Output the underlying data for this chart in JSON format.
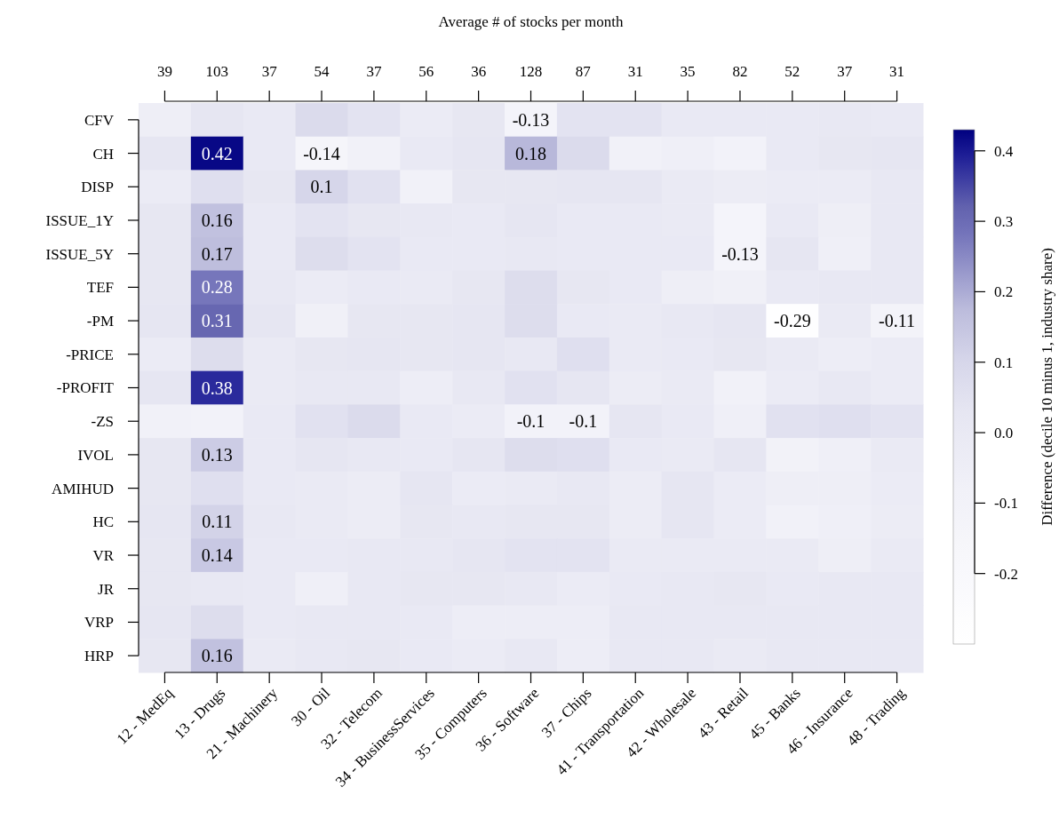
{
  "chart_data": {
    "type": "heatmap",
    "x2label": "Average # of stocks per month",
    "clabel": "Difference (decile 10 minus 1, industry share)",
    "categories": [
      "12 - MedEq",
      "13 - Drugs",
      "21 - Machinery",
      "30 - Oil",
      "32 - Telecom",
      "34 - BusinessServices",
      "35 - Computers",
      "36 - Software",
      "37 - Chips",
      "41 - Transportation",
      "42 - Wholesale",
      "43 - Retail",
      "45 - Banks",
      "46 - Insurance",
      "48 - Trading"
    ],
    "y_categories": [
      "CFV",
      "CH",
      "DISP",
      "ISSUE_1Y",
      "ISSUE_5Y",
      "TEF",
      "-PM",
      "-PRICE",
      "-PROFIT",
      "-ZS",
      "IVOL",
      "AMIHUD",
      "HC",
      "VR",
      "JR",
      "VRP",
      "HRP"
    ],
    "cells": [
      [
        -0.05,
        0.03,
        0.0,
        0.08,
        0.04,
        -0.02,
        0.02,
        -0.13,
        0.04,
        0.04,
        0.0,
        0.0,
        0.0,
        0.01,
        0.0
      ],
      [
        0.03,
        0.42,
        0.0,
        -0.14,
        -0.08,
        0.0,
        0.03,
        0.18,
        0.08,
        -0.08,
        -0.06,
        -0.1,
        0.0,
        0.02,
        0.03
      ],
      [
        -0.02,
        0.06,
        0.02,
        0.1,
        0.05,
        -0.08,
        0.02,
        0.02,
        0.03,
        0.03,
        -0.01,
        -0.03,
        -0.02,
        -0.02,
        0.01
      ],
      [
        0.02,
        0.16,
        0.0,
        0.04,
        0.02,
        0.01,
        0.0,
        0.03,
        0.0,
        0.0,
        -0.01,
        -0.13,
        0.0,
        -0.05,
        0.01
      ],
      [
        0.02,
        0.17,
        0.0,
        0.07,
        0.04,
        0.0,
        0.0,
        0.01,
        0.0,
        0.0,
        0.0,
        -0.13,
        0.03,
        -0.06,
        0.01
      ],
      [
        0.02,
        0.28,
        0.01,
        -0.02,
        0.0,
        -0.01,
        0.02,
        0.07,
        0.02,
        0.0,
        -0.05,
        -0.07,
        0.0,
        0.01,
        0.01
      ],
      [
        0.03,
        0.31,
        0.03,
        -0.07,
        0.02,
        0.02,
        0.03,
        0.07,
        0.0,
        -0.01,
        0.01,
        0.03,
        -0.29,
        -0.01,
        -0.11
      ],
      [
        -0.02,
        0.07,
        -0.01,
        0.02,
        0.03,
        0.02,
        0.03,
        0.01,
        0.06,
        -0.01,
        0.0,
        0.02,
        -0.01,
        -0.04,
        -0.02
      ],
      [
        0.03,
        0.38,
        -0.01,
        0.01,
        0.01,
        -0.04,
        0.01,
        0.05,
        0.03,
        -0.03,
        -0.01,
        -0.08,
        -0.02,
        0.01,
        -0.02
      ],
      [
        -0.08,
        -0.1,
        0.0,
        0.05,
        0.08,
        0.0,
        -0.02,
        -0.1,
        -0.1,
        0.03,
        0.0,
        -0.06,
        0.05,
        0.06,
        0.04
      ],
      [
        0.02,
        0.13,
        0.0,
        0.03,
        0.01,
        0.0,
        0.03,
        0.07,
        0.06,
        0.0,
        -0.01,
        0.03,
        -0.09,
        -0.06,
        -0.01
      ],
      [
        0.02,
        0.06,
        0.0,
        -0.01,
        -0.03,
        0.03,
        -0.02,
        -0.01,
        0.01,
        -0.03,
        0.03,
        -0.02,
        -0.05,
        -0.05,
        -0.02
      ],
      [
        0.03,
        0.11,
        0.01,
        -0.01,
        -0.03,
        0.02,
        0.01,
        0.02,
        0.02,
        -0.03,
        0.03,
        -0.02,
        -0.08,
        -0.06,
        -0.03
      ],
      [
        0.02,
        0.14,
        0.0,
        0.0,
        0.01,
        0.01,
        0.03,
        0.04,
        0.04,
        -0.01,
        -0.01,
        -0.01,
        -0.01,
        -0.05,
        -0.01
      ],
      [
        0.02,
        0.01,
        0.0,
        -0.06,
        0.01,
        0.02,
        0.02,
        0.01,
        -0.02,
        0.0,
        0.01,
        0.02,
        0.0,
        0.01,
        0.01
      ],
      [
        0.03,
        0.07,
        0.0,
        0.01,
        0.01,
        0.0,
        -0.04,
        -0.04,
        -0.04,
        0.01,
        0.01,
        0.01,
        0.01,
        0.01,
        0.01
      ],
      [
        0.02,
        0.16,
        -0.01,
        0.01,
        0.02,
        0.0,
        -0.02,
        0.01,
        -0.04,
        0.01,
        0.01,
        -0.01,
        0.01,
        0.01,
        0.01
      ]
    ],
    "cell_labels": [
      [
        null,
        null,
        null,
        null,
        null,
        null,
        null,
        "-0.13",
        null,
        null,
        null,
        null,
        null,
        null,
        null
      ],
      [
        null,
        "0.42",
        null,
        "-0.14",
        null,
        null,
        null,
        "0.18",
        null,
        null,
        null,
        null,
        null,
        null,
        null
      ],
      [
        null,
        null,
        null,
        "0.1",
        null,
        null,
        null,
        null,
        null,
        null,
        null,
        null,
        null,
        null,
        null
      ],
      [
        null,
        "0.16",
        null,
        null,
        null,
        null,
        null,
        null,
        null,
        null,
        null,
        null,
        null,
        null,
        null
      ],
      [
        null,
        "0.17",
        null,
        null,
        null,
        null,
        null,
        null,
        null,
        null,
        null,
        "-0.13",
        null,
        null,
        null
      ],
      [
        null,
        "0.28",
        null,
        null,
        null,
        null,
        null,
        null,
        null,
        null,
        null,
        null,
        null,
        null,
        null
      ],
      [
        null,
        "0.31",
        null,
        null,
        null,
        null,
        null,
        null,
        null,
        null,
        null,
        null,
        "-0.29",
        null,
        "-0.11"
      ],
      [
        null,
        null,
        null,
        null,
        null,
        null,
        null,
        null,
        null,
        null,
        null,
        null,
        null,
        null,
        null
      ],
      [
        null,
        "0.38",
        null,
        null,
        null,
        null,
        null,
        null,
        null,
        null,
        null,
        null,
        null,
        null,
        null
      ],
      [
        null,
        null,
        null,
        null,
        null,
        null,
        null,
        "-0.1",
        "-0.1",
        null,
        null,
        null,
        null,
        null,
        null
      ],
      [
        null,
        "0.13",
        null,
        null,
        null,
        null,
        null,
        null,
        null,
        null,
        null,
        null,
        null,
        null,
        null
      ],
      [
        null,
        null,
        null,
        null,
        null,
        null,
        null,
        null,
        null,
        null,
        null,
        null,
        null,
        null,
        null
      ],
      [
        null,
        "0.11",
        null,
        null,
        null,
        null,
        null,
        null,
        null,
        null,
        null,
        null,
        null,
        null,
        null
      ],
      [
        null,
        "0.14",
        null,
        null,
        null,
        null,
        null,
        null,
        null,
        null,
        null,
        null,
        null,
        null,
        null
      ],
      [
        null,
        null,
        null,
        null,
        null,
        null,
        null,
        null,
        null,
        null,
        null,
        null,
        null,
        null,
        null
      ],
      [
        null,
        null,
        null,
        null,
        null,
        null,
        null,
        null,
        null,
        null,
        null,
        null,
        null,
        null,
        null
      ],
      [
        null,
        "0.16",
        null,
        null,
        null,
        null,
        null,
        null,
        null,
        null,
        null,
        null,
        null,
        null,
        null
      ]
    ],
    "clim": [
      -0.3,
      0.43
    ],
    "cticks": [
      -0.2,
      -0.1,
      {
        "value": 0,
        "label": "0.0"
      },
      0.1,
      0.2,
      0.3,
      0.4
    ],
    "annotations": [
      "39",
      "103",
      "37",
      "54",
      "37",
      "56",
      "36",
      "128",
      "87",
      "31",
      "35",
      "82",
      "52",
      "37",
      "31"
    ]
  }
}
